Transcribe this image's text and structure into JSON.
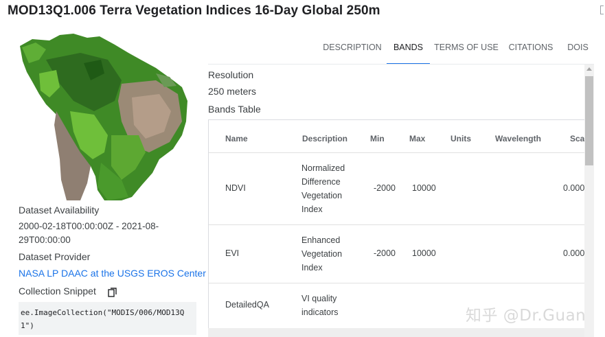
{
  "header": {
    "title": "MOD13Q1.006 Terra Vegetation Indices 16-Day Global 250m"
  },
  "left": {
    "availability_label": "Dataset Availability",
    "availability_value": "2000-02-18T00:00:00Z - 2021-08-29T00:00:00",
    "provider_label": "Dataset Provider",
    "provider_link": "NASA LP DAAC at the USGS EROS Center",
    "snippet_label": "Collection Snippet",
    "snippet_code": "ee.ImageCollection(\"MODIS/006/MOD13Q1\")"
  },
  "tabs": [
    {
      "label": "DESCRIPTION",
      "active": false
    },
    {
      "label": "BANDS",
      "active": true
    },
    {
      "label": "TERMS OF USE",
      "active": false
    },
    {
      "label": "CITATIONS",
      "active": false
    },
    {
      "label": "DOIS",
      "active": false
    }
  ],
  "bands": {
    "resolution_label": "Resolution",
    "resolution_value": "250 meters",
    "table_title": "Bands Table",
    "columns": [
      "Name",
      "Description",
      "Min",
      "Max",
      "Units",
      "Wavelength",
      "Sca"
    ],
    "rows": [
      {
        "name": "NDVI",
        "desc_lines": [
          "Normalized",
          "Difference",
          "Vegetation",
          "Index"
        ],
        "min": "-2000",
        "max": "10000",
        "scale": "0.000"
      },
      {
        "name": "EVI",
        "desc_lines": [
          "Enhanced",
          "Vegetation",
          "Index"
        ],
        "min": "-2000",
        "max": "10000",
        "scale": "0.000"
      },
      {
        "name": "DetailedQA",
        "desc_lines": [
          "VI quality",
          "indicators"
        ],
        "min": "",
        "max": "",
        "scale": ""
      }
    ]
  },
  "watermark": "知乎 @Dr.Guan",
  "icons": {
    "copy": "copy-icon",
    "map": "south-america-ndvi-map"
  },
  "colors": {
    "accent": "#1a73e8",
    "vegetation_dark": "#2e6b1f",
    "vegetation_light": "#6fbf3a",
    "arid": "#a08a78"
  }
}
